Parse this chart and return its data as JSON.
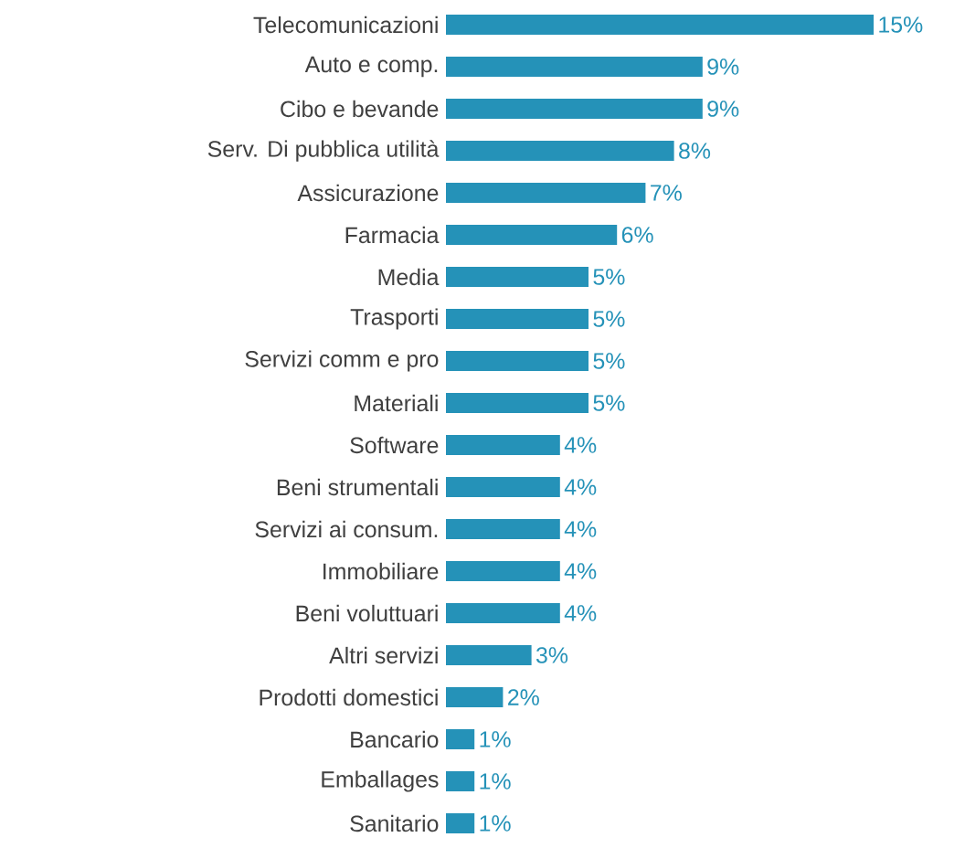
{
  "chart_data": {
    "type": "bar",
    "orientation": "horizontal",
    "categories": [
      "Telecomunicazioni",
      "Auto e comp.",
      "Cibo e bevande",
      "Serv. Di pubblica utilità",
      "Assicurazione",
      "Farmacia",
      "Media",
      "Trasporti",
      "Servizi comm e pro",
      "Materiali",
      "Software",
      "Beni strumentali",
      "Servizi ai consum.",
      "Immobiliare",
      "Beni voluttuari",
      "Altri servizi",
      "Prodotti domestici",
      "Bancario",
      "Emballages",
      "Sanitario"
    ],
    "series": [
      {
        "color": "#2592b8",
        "values": [
          15,
          9,
          9,
          8,
          7,
          6,
          5,
          5,
          5,
          5,
          4,
          4,
          4,
          4,
          4,
          3,
          2,
          1,
          1,
          1
        ],
        "value_labels": [
          "15%",
          "9%",
          "9%",
          "8%",
          "7%",
          "6%",
          "5%",
          "5%",
          "5%",
          "5%",
          "4%",
          "4%",
          "4%",
          "4%",
          "4%",
          "3%",
          "2%",
          "1%",
          "1%",
          "1%"
        ]
      }
    ]
  }
}
